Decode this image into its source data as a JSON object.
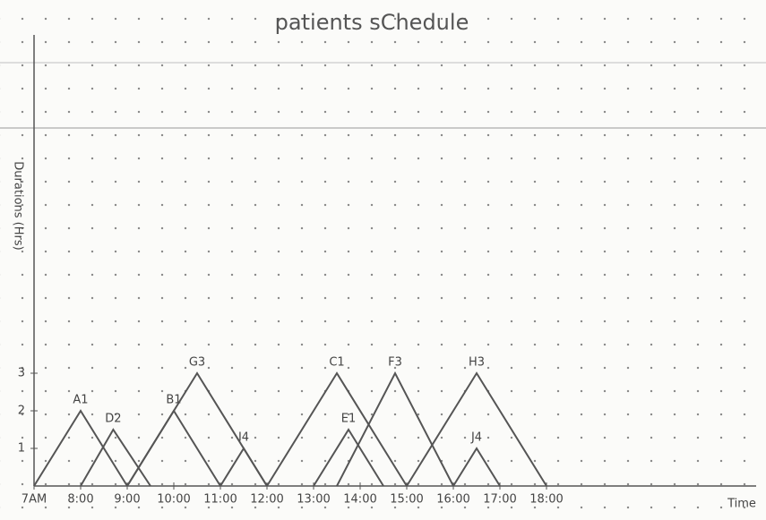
{
  "chart_data": {
    "type": "line",
    "title": "patients sChedule",
    "x_label": "Time",
    "y_label": "Durations (Hrs)",
    "color": "#555555",
    "xlim": [
      7,
      22.5
    ],
    "ylim": [
      0,
      12
    ],
    "xticks": [
      {
        "value": 7,
        "label": "7AM"
      },
      {
        "value": 8,
        "label": "8:00"
      },
      {
        "value": 9,
        "label": "9:00"
      },
      {
        "value": 10,
        "label": "10:00"
      },
      {
        "value": 11,
        "label": "11:00"
      },
      {
        "value": 12,
        "label": "12:00"
      },
      {
        "value": 13,
        "label": "13:00"
      },
      {
        "value": 14,
        "label": "14:00"
      },
      {
        "value": 15,
        "label": "15:00"
      },
      {
        "value": 16,
        "label": "16:00"
      },
      {
        "value": 17,
        "label": "17:00"
      },
      {
        "value": 18,
        "label": "18:00"
      }
    ],
    "yticks": [
      1,
      2,
      3
    ],
    "series": [
      {
        "name": "A1",
        "x": [
          7,
          8,
          9
        ],
        "values": [
          0,
          2,
          0
        ]
      },
      {
        "name": "D2",
        "x": [
          8,
          8.7,
          9.5
        ],
        "values": [
          0,
          1.5,
          0
        ]
      },
      {
        "name": "B1",
        "x": [
          9,
          10,
          11
        ],
        "values": [
          0,
          2,
          0
        ]
      },
      {
        "name": "G3",
        "x": [
          9,
          10.5,
          12
        ],
        "values": [
          0,
          3,
          0
        ]
      },
      {
        "name": "I4",
        "x": [
          11,
          11.5,
          12
        ],
        "values": [
          0,
          1,
          0
        ]
      },
      {
        "name": "C1",
        "x": [
          12,
          13.5,
          15
        ],
        "values": [
          0,
          3,
          0
        ]
      },
      {
        "name": "E1",
        "x": [
          13,
          13.75,
          14.5
        ],
        "values": [
          0,
          1.5,
          0
        ]
      },
      {
        "name": "F3",
        "x": [
          13.5,
          14.75,
          16
        ],
        "values": [
          0,
          3,
          0
        ]
      },
      {
        "name": "H3",
        "x": [
          15,
          16.5,
          18
        ],
        "values": [
          0,
          3,
          0
        ]
      },
      {
        "name": "J4",
        "x": [
          16,
          16.5,
          17
        ],
        "values": [
          0,
          1,
          0
        ]
      }
    ]
  }
}
